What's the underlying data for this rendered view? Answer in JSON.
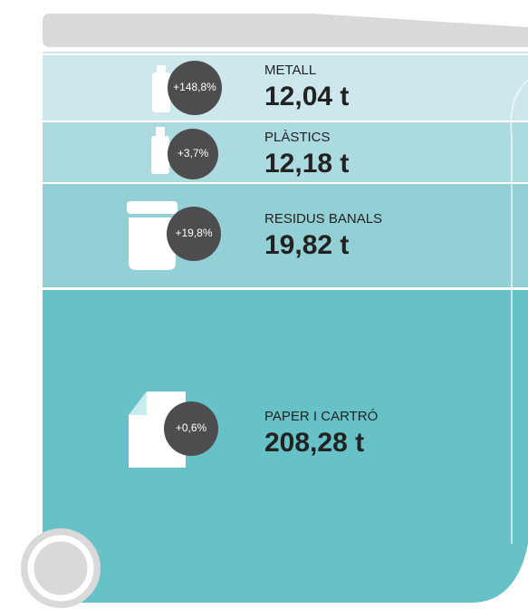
{
  "items": [
    {
      "label": "METALL",
      "amount": "12,04 t",
      "change": "+148,8%"
    },
    {
      "label": "PLÀSTICS",
      "amount": "12,18 t",
      "change": "+3,7%"
    },
    {
      "label": "RESIDUS BANALS",
      "amount": "19,82 t",
      "change": "+19,8%"
    },
    {
      "label": "PAPER I CARTRÓ",
      "amount": "208,28 t",
      "change": "+0,6%"
    }
  ]
}
